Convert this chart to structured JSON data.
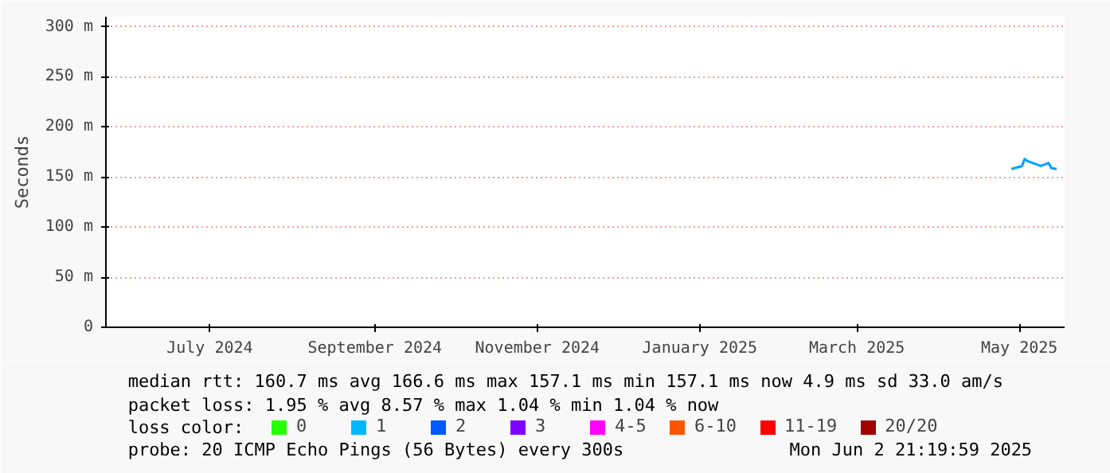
{
  "chart_data": {
    "type": "line",
    "ylabel": "Seconds",
    "x": [
      "2025-05-13",
      "2025-05-17",
      "2025-05-18",
      "2025-05-19",
      "2025-05-21",
      "2025-05-24",
      "2025-05-27",
      "2025-05-28",
      "2025-05-30"
    ],
    "series": [
      {
        "color": "#00a0ff",
        "values": [
          158,
          161,
          168,
          166,
          164,
          161,
          164,
          159,
          158
        ]
      },
      {
        "name": "0",
        "color": "#26ff00",
        "values": [
          null,
          null,
          null,
          null,
          null,
          null,
          null,
          null,
          null
        ]
      },
      {
        "name": "1",
        "color": "#00b8ff",
        "values": [
          null,
          null,
          null,
          null,
          null,
          null,
          null,
          null,
          null
        ]
      },
      {
        "name": "2",
        "color": "#0059ff",
        "values": [
          null,
          null,
          null,
          null,
          null,
          null,
          null,
          null,
          null
        ]
      },
      {
        "name": "3",
        "color": "#7e00ff",
        "values": [
          null,
          null,
          null,
          null,
          null,
          null,
          null,
          null,
          null
        ]
      },
      {
        "name": "4-5",
        "color": "#ff00ff",
        "values": [
          null,
          null,
          null,
          null,
          null,
          null,
          null,
          null,
          null
        ]
      },
      {
        "name": "6-10",
        "color": "#ff5500",
        "values": [
          null,
          null,
          null,
          null,
          null,
          null,
          null,
          null,
          null
        ]
      },
      {
        "name": "11-19",
        "color": "#ff0000",
        "values": [
          null,
          null,
          null,
          null,
          null,
          null,
          null,
          null,
          null
        ]
      },
      {
        "name": "20/20",
        "color": "#a10000",
        "values": [
          null,
          null,
          null,
          null,
          null,
          null,
          null,
          null,
          null
        ]
      }
    ],
    "xlim": [
      "2024-06-07",
      "2025-06-02"
    ],
    "xticks": [
      {
        "value": "2024-07-16",
        "label": "July 2024"
      },
      {
        "value": "2024-09-16",
        "label": "September 2024"
      },
      {
        "value": "2024-11-16",
        "label": "November 2024"
      },
      {
        "value": "2025-01-16",
        "label": "January 2025"
      },
      {
        "value": "2025-03-16",
        "label": "March 2025"
      },
      {
        "value": "2025-05-16",
        "label": "May 2025"
      }
    ],
    "ylim": [
      0,
      310
    ],
    "yticks": [
      0,
      {
        "value": 50,
        "label": "50 m"
      },
      {
        "value": 100,
        "label": "100 m"
      },
      {
        "value": 150,
        "label": "150 m"
      },
      {
        "value": 200,
        "label": "200 m"
      },
      {
        "value": 250,
        "label": "250 m"
      },
      {
        "value": 300,
        "label": "300 m"
      }
    ],
    "grid": true,
    "legend": "bottom",
    "line_style": "solid",
    "marker": "none",
    "annotations": [
      "median rtt:  160.7 ms avg  166.6 ms max  157.1 ms min  157.1 ms now  4.9 ms sd  33.0   am/s",
      "packet loss: 1.95 % avg  8.57 % max  1.04 % min  1.04 % now",
      "loss color:",
      "probe:       20 ICMP Echo Pings (56 Bytes) every 300s",
      "Mon Jun  2 21:19:59 2025"
    ]
  }
}
